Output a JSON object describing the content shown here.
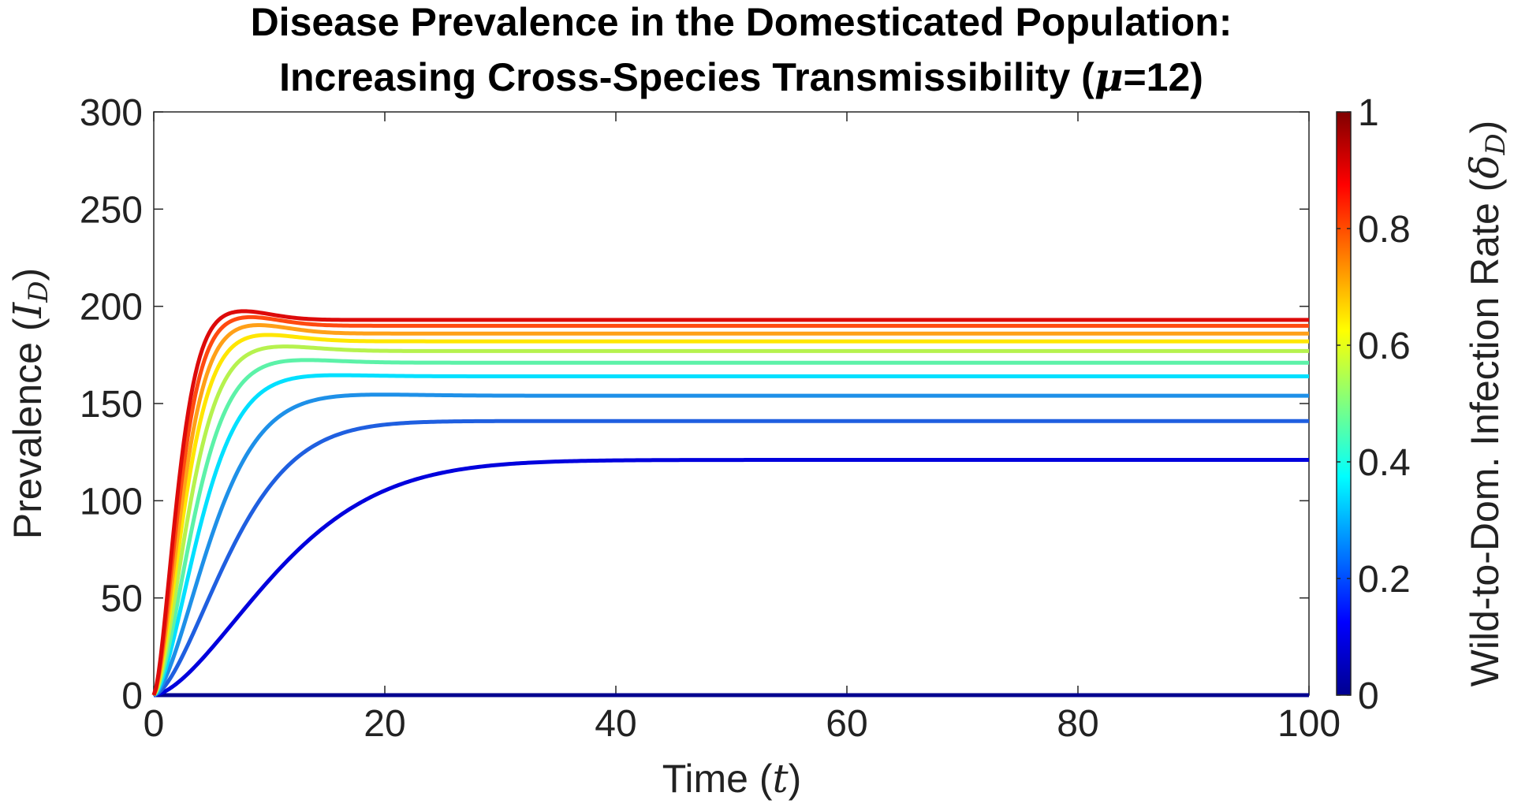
{
  "chart_data": {
    "type": "line",
    "title_line1": "Disease Prevalence in the Domesticated Population:",
    "title_line2_prefix": "Increasing Cross-Species Transmissibility (",
    "title_line2_math": "μ",
    "title_line2_suffix": "=12)",
    "xlabel_text": "Time (",
    "xlabel_math": "t",
    "xlabel_close": ")",
    "ylabel_text": "Prevalence (",
    "ylabel_math": "I",
    "ylabel_sub": "D",
    "ylabel_close": ")",
    "xlim": [
      0,
      100
    ],
    "ylim": [
      0,
      300
    ],
    "xticks": [
      "0",
      "20",
      "40",
      "60",
      "80",
      "100"
    ],
    "yticks": [
      "0",
      "50",
      "100",
      "150",
      "200",
      "250",
      "300"
    ],
    "grid": false,
    "colorbar": {
      "label_text": "Wild-to-Dom. Infection Rate (",
      "label_math": "δ",
      "label_sub": "D",
      "label_close": ")",
      "range": [
        0,
        1
      ],
      "ticks": [
        "0",
        "0.2",
        "0.4",
        "0.6",
        "0.8",
        "1"
      ],
      "colormap": "jet"
    },
    "series": [
      {
        "name": "δD=0.0",
        "delta": 0.0,
        "color": "#00008F",
        "peak": 0,
        "peak_t": 0,
        "plateau": 0,
        "rise_t": 1
      },
      {
        "name": "δD=0.1",
        "delta": 0.1,
        "color": "#0000DD",
        "peak": 121,
        "peak_t": 30,
        "plateau": 121,
        "rise_t": 12
      },
      {
        "name": "δD=0.2",
        "delta": 0.2,
        "color": "#1F5FE0",
        "peak": 141,
        "peak_t": 20,
        "plateau": 141,
        "rise_t": 7.5
      },
      {
        "name": "δD=0.3",
        "delta": 0.3,
        "color": "#1E90E8",
        "peak": 155,
        "peak_t": 15,
        "plateau": 154,
        "rise_t": 5.6
      },
      {
        "name": "δD=0.4",
        "delta": 0.4,
        "color": "#00E0FF",
        "peak": 165,
        "peak_t": 12,
        "plateau": 164,
        "rise_t": 4.5
      },
      {
        "name": "δD=0.5",
        "delta": 0.5,
        "color": "#5CF2A8",
        "peak": 173,
        "peak_t": 10.5,
        "plateau": 171,
        "rise_t": 3.9
      },
      {
        "name": "δD=0.6",
        "delta": 0.6,
        "color": "#B6F24E",
        "peak": 180,
        "peak_t": 9.5,
        "plateau": 177,
        "rise_t": 3.4
      },
      {
        "name": "δD=0.7",
        "delta": 0.7,
        "color": "#FFE600",
        "peak": 186,
        "peak_t": 8.5,
        "plateau": 182,
        "rise_t": 3.0
      },
      {
        "name": "δD=0.8",
        "delta": 0.8,
        "color": "#FFA018",
        "peak": 191,
        "peak_t": 8,
        "plateau": 186,
        "rise_t": 2.75
      },
      {
        "name": "δD=0.9",
        "delta": 0.9,
        "color": "#FF4A10",
        "peak": 195,
        "peak_t": 7.5,
        "plateau": 190,
        "rise_t": 2.5
      },
      {
        "name": "δD=1.0",
        "delta": 1.0,
        "color": "#DD0A0A",
        "peak": 198,
        "peak_t": 7,
        "plateau": 193,
        "rise_t": 2.3
      }
    ]
  }
}
